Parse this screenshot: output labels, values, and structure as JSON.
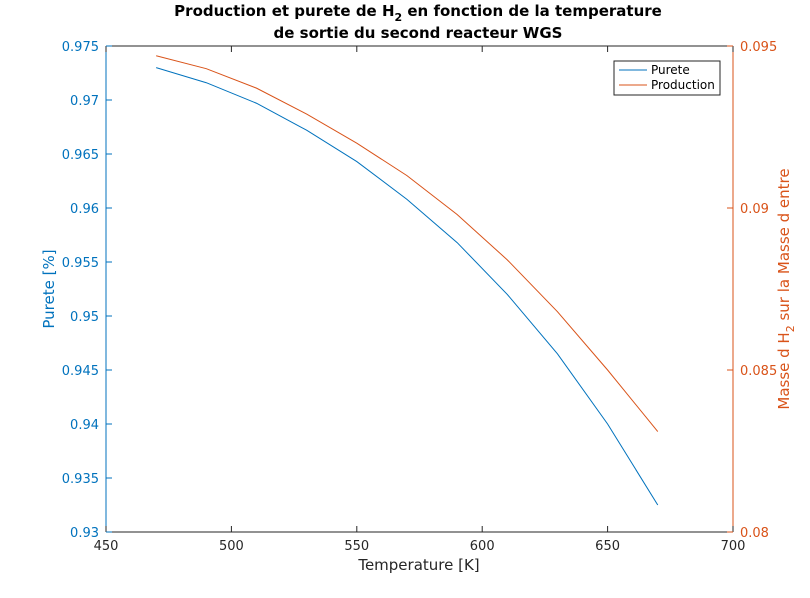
{
  "chart_data": {
    "type": "line",
    "title": {
      "line1_pre": "Production et purete de H",
      "line1_sub": "2",
      "line1_post": " en fonction de la temperature",
      "line2": "de sortie du second reacteur WGS"
    },
    "xlabel": "Temperature [K]",
    "ylabel_left": "Purete [%]",
    "ylabel_right": {
      "pre": "Masse d H",
      "sub": "2",
      "post": " sur la Masse d entre"
    },
    "xlim": [
      450,
      700
    ],
    "ylim_left": [
      0.93,
      0.975
    ],
    "ylim_right": [
      0.08,
      0.095
    ],
    "x_ticks": [
      "450",
      "500",
      "550",
      "600",
      "650",
      "700"
    ],
    "y_left_ticks": [
      "0.93",
      "0.935",
      "0.94",
      "0.945",
      "0.95",
      "0.955",
      "0.96",
      "0.965",
      "0.97",
      "0.975"
    ],
    "y_right_ticks": [
      "0.08",
      "0.085",
      "0.09",
      "0.095"
    ],
    "grid": false,
    "legend_position": "top-right",
    "colors": {
      "left": "#0072BD",
      "right": "#D95319",
      "axis": "#262626"
    },
    "series": [
      {
        "name": "Purete",
        "axis": "left",
        "color": "#0072BD",
        "x": [
          470,
          490,
          510,
          530,
          550,
          570,
          590,
          610,
          630,
          650,
          670
        ],
        "y": [
          0.973,
          0.9716,
          0.9697,
          0.9672,
          0.9643,
          0.9608,
          0.9568,
          0.952,
          0.9465,
          0.94,
          0.9325
        ]
      },
      {
        "name": "Production",
        "axis": "right",
        "color": "#D95319",
        "x": [
          470,
          490,
          510,
          530,
          550,
          570,
          590,
          610,
          630,
          650,
          670
        ],
        "y": [
          0.0947,
          0.0943,
          0.0937,
          0.0929,
          0.092,
          0.091,
          0.0898,
          0.0884,
          0.0868,
          0.085,
          0.0831
        ]
      }
    ]
  }
}
